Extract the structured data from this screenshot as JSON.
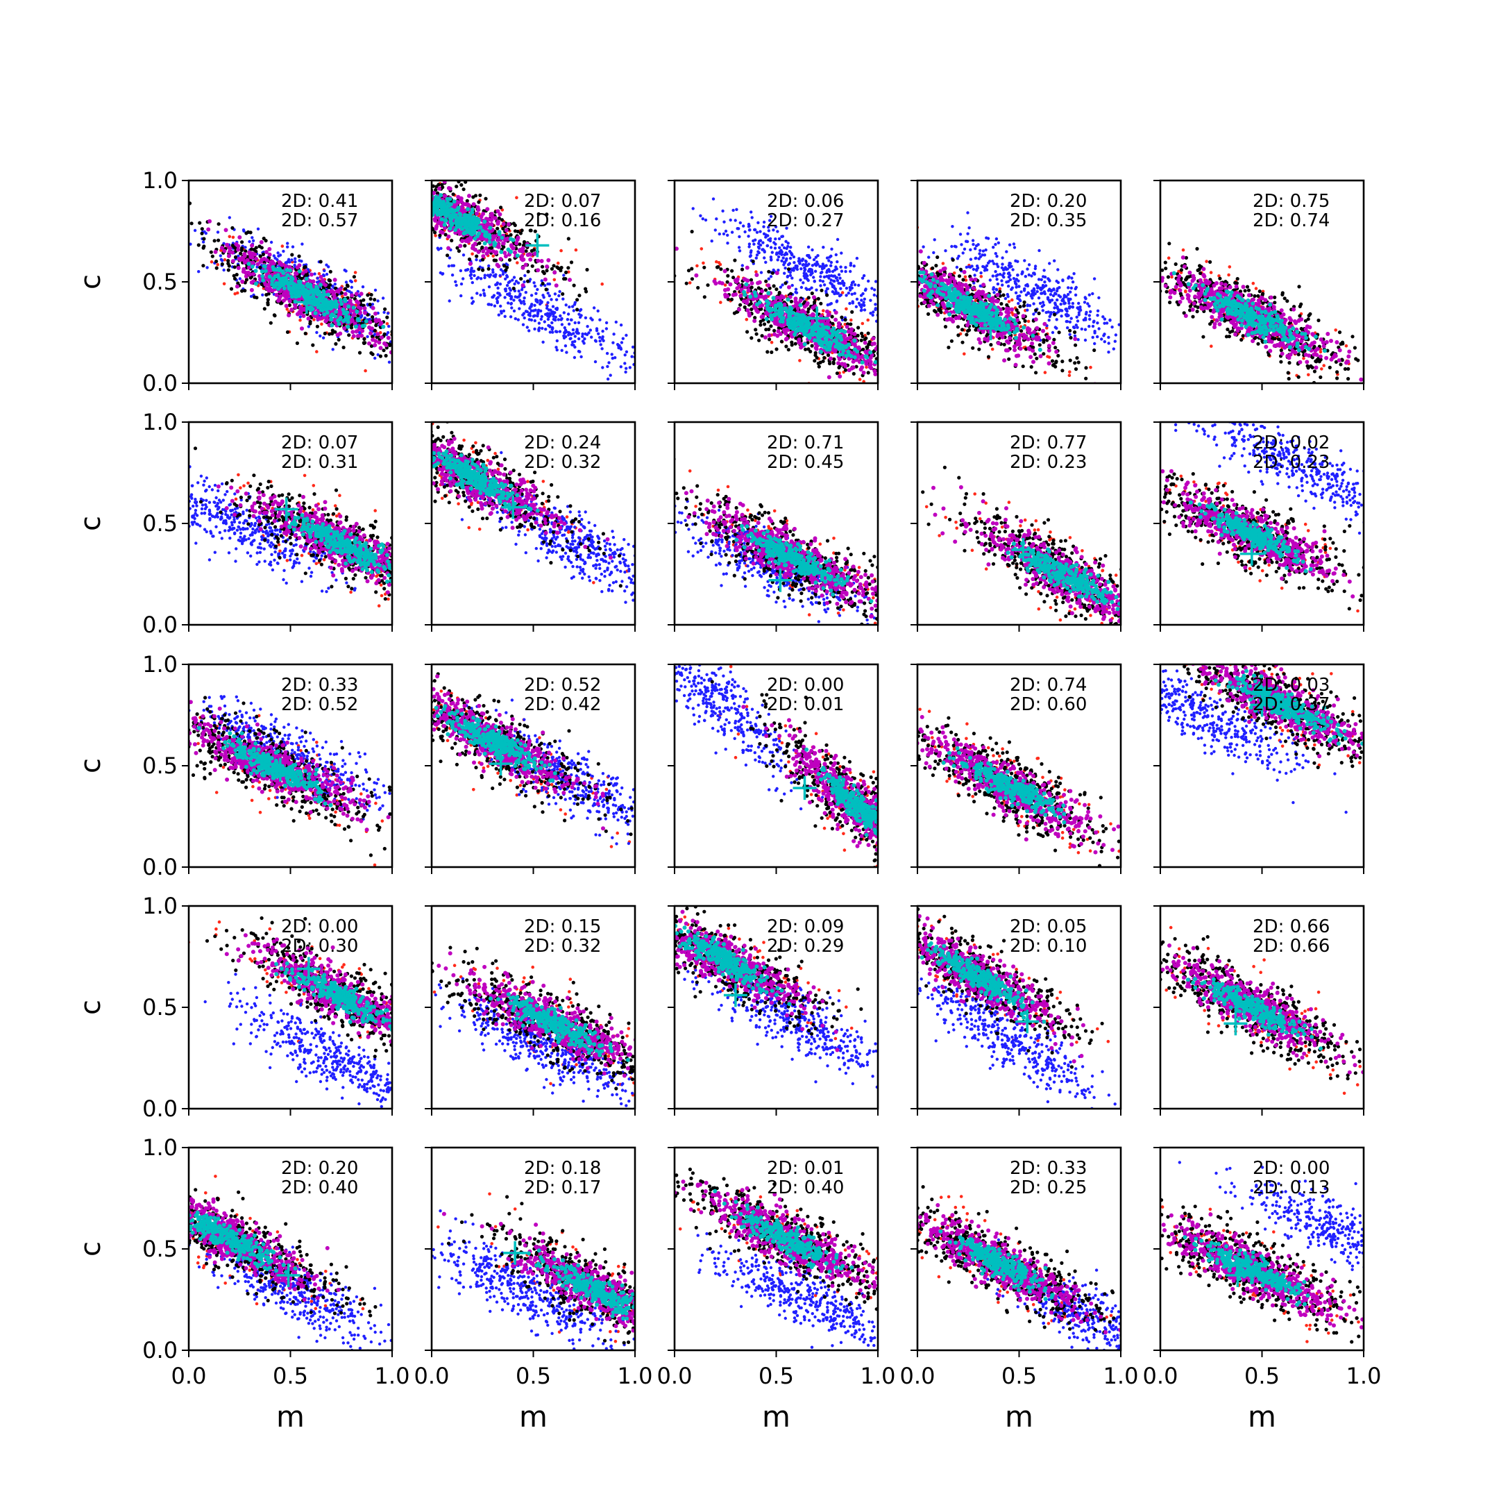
{
  "figure": {
    "xlabel": "m",
    "ylabel": "c",
    "xticks": [
      "0.0",
      "0.5",
      "1.0"
    ],
    "yticks": [
      "0.0",
      "0.5",
      "1.0"
    ]
  },
  "chart_data": {
    "type": "scatter",
    "grid": false,
    "layout": "5x5 panel grid, shared axes",
    "xlabel": "m",
    "ylabel": "c",
    "xlim": [
      0,
      1
    ],
    "ylim": [
      0,
      1
    ],
    "colors": {
      "outer": "#ff2a1a",
      "blue_samples": "#2020ff",
      "black_samples": "#000000",
      "magenta_core": "#bf00bf",
      "cyan_core": "#00bfbf",
      "marker": "#00bfbf"
    },
    "panels": [
      {
        "row": 0,
        "col": 0,
        "annotation": [
          "2D: 0.41",
          "2D: 0.57"
        ],
        "main_center": [
          0.58,
          0.44
        ],
        "slope": -0.55,
        "blue_center": [
          0.6,
          0.46
        ],
        "marker": [
          0.58,
          0.4
        ]
      },
      {
        "row": 0,
        "col": 1,
        "annotation": [
          "2D: 0.07",
          "2D: 0.16"
        ],
        "main_center": [
          0.12,
          0.82
        ],
        "slope": -0.55,
        "blue_center": [
          0.55,
          0.35
        ],
        "marker": [
          0.52,
          0.68
        ]
      },
      {
        "row": 0,
        "col": 2,
        "annotation": [
          "2D: 0.06",
          "2D: 0.27"
        ],
        "main_center": [
          0.65,
          0.28
        ],
        "slope": -0.55,
        "blue_center": [
          0.65,
          0.57
        ],
        "marker": [
          0.7,
          0.32
        ]
      },
      {
        "row": 0,
        "col": 3,
        "annotation": [
          "2D: 0.20",
          "2D: 0.35"
        ],
        "main_center": [
          0.25,
          0.38
        ],
        "slope": -0.55,
        "blue_center": [
          0.6,
          0.45
        ],
        "marker": [
          0.36,
          0.27
        ]
      },
      {
        "row": 0,
        "col": 4,
        "annotation": [
          "2D: 0.75",
          "2D: 0.74"
        ],
        "main_center": [
          0.45,
          0.33
        ],
        "slope": -0.5,
        "blue_center": null,
        "marker": null
      },
      {
        "row": 1,
        "col": 0,
        "annotation": [
          "2D: 0.07",
          "2D: 0.31"
        ],
        "main_center": [
          0.75,
          0.4
        ],
        "slope": -0.5,
        "blue_center": [
          0.25,
          0.5
        ],
        "marker": [
          0.48,
          0.57
        ]
      },
      {
        "row": 1,
        "col": 1,
        "annotation": [
          "2D: 0.24",
          "2D: 0.32"
        ],
        "main_center": [
          0.2,
          0.73
        ],
        "slope": -0.55,
        "blue_center": [
          0.7,
          0.4
        ],
        "marker": [
          0.4,
          0.58
        ]
      },
      {
        "row": 1,
        "col": 2,
        "annotation": [
          "2D: 0.71",
          "2D: 0.45"
        ],
        "main_center": [
          0.58,
          0.33
        ],
        "slope": -0.5,
        "blue_center": [
          0.45,
          0.3
        ],
        "marker": [
          0.52,
          0.22
        ]
      },
      {
        "row": 1,
        "col": 3,
        "annotation": [
          "2D: 0.77",
          "2D: 0.23"
        ],
        "main_center": [
          0.72,
          0.25
        ],
        "slope": -0.55,
        "blue_center": null,
        "marker": [
          0.52,
          0.37
        ]
      },
      {
        "row": 1,
        "col": 4,
        "annotation": [
          "2D: 0.02",
          "2D: 0.23"
        ],
        "main_center": [
          0.45,
          0.45
        ],
        "slope": -0.5,
        "blue_center": [
          0.7,
          0.77
        ],
        "marker": [
          0.45,
          0.35
        ]
      },
      {
        "row": 2,
        "col": 0,
        "annotation": [
          "2D: 0.33",
          "2D: 0.52"
        ],
        "main_center": [
          0.4,
          0.5
        ],
        "slope": -0.5,
        "blue_center": [
          0.5,
          0.55
        ],
        "marker": [
          0.45,
          0.48
        ]
      },
      {
        "row": 2,
        "col": 1,
        "annotation": [
          "2D: 0.52",
          "2D: 0.42"
        ],
        "main_center": [
          0.3,
          0.62
        ],
        "slope": -0.55,
        "blue_center": [
          0.65,
          0.45
        ],
        "marker": [
          0.34,
          0.51
        ]
      },
      {
        "row": 2,
        "col": 2,
        "annotation": [
          "2D: 0.00",
          "2D: 0.01"
        ],
        "main_center": [
          0.9,
          0.3
        ],
        "slope": -0.9,
        "blue_center": [
          0.2,
          0.82
        ],
        "marker": [
          0.64,
          0.39
        ]
      },
      {
        "row": 2,
        "col": 3,
        "annotation": [
          "2D: 0.74",
          "2D: 0.60"
        ],
        "main_center": [
          0.45,
          0.4
        ],
        "slope": -0.55,
        "blue_center": null,
        "marker": null
      },
      {
        "row": 2,
        "col": 4,
        "annotation": [
          "2D: 0.03",
          "2D: 0.37"
        ],
        "main_center": [
          0.6,
          0.8
        ],
        "slope": -0.5,
        "blue_center": [
          0.2,
          0.75
        ],
        "marker": [
          0.5,
          0.8
        ]
      },
      {
        "row": 3,
        "col": 0,
        "annotation": [
          "2D: 0.00",
          "2D: 0.30"
        ],
        "main_center": [
          0.75,
          0.55
        ],
        "slope": -0.55,
        "blue_center": [
          0.7,
          0.25
        ],
        "marker": [
          0.59,
          0.69
        ]
      },
      {
        "row": 3,
        "col": 1,
        "annotation": [
          "2D: 0.15",
          "2D: 0.32"
        ],
        "main_center": [
          0.6,
          0.42
        ],
        "slope": -0.5,
        "blue_center": [
          0.55,
          0.3
        ],
        "marker": null
      },
      {
        "row": 3,
        "col": 2,
        "annotation": [
          "2D: 0.09",
          "2D: 0.29"
        ],
        "main_center": [
          0.25,
          0.73
        ],
        "slope": -0.55,
        "blue_center": [
          0.6,
          0.43
        ],
        "marker": [
          0.3,
          0.56
        ]
      },
      {
        "row": 3,
        "col": 3,
        "annotation": [
          "2D: 0.05",
          "2D: 0.10"
        ],
        "main_center": [
          0.3,
          0.65
        ],
        "slope": -0.6,
        "blue_center": [
          0.45,
          0.35
        ],
        "marker": [
          0.54,
          0.43
        ]
      },
      {
        "row": 3,
        "col": 4,
        "annotation": [
          "2D: 0.66",
          "2D: 0.66"
        ],
        "main_center": [
          0.45,
          0.5
        ],
        "slope": -0.55,
        "blue_center": null,
        "marker": [
          0.37,
          0.42
        ]
      },
      {
        "row": 4,
        "col": 0,
        "annotation": [
          "2D: 0.20",
          "2D: 0.40"
        ],
        "main_center": [
          0.2,
          0.55
        ],
        "slope": -0.55,
        "blue_center": [
          0.5,
          0.3
        ],
        "marker": [
          0.49,
          0.37
        ]
      },
      {
        "row": 4,
        "col": 1,
        "annotation": [
          "2D: 0.18",
          "2D: 0.17"
        ],
        "main_center": [
          0.8,
          0.3
        ],
        "slope": -0.55,
        "blue_center": [
          0.45,
          0.3
        ],
        "marker": [
          0.41,
          0.48
        ]
      },
      {
        "row": 4,
        "col": 2,
        "annotation": [
          "2D: 0.01",
          "2D: 0.40"
        ],
        "main_center": [
          0.55,
          0.55
        ],
        "slope": -0.5,
        "blue_center": [
          0.65,
          0.25
        ],
        "marker": null
      },
      {
        "row": 4,
        "col": 3,
        "annotation": [
          "2D: 0.33",
          "2D: 0.25"
        ],
        "main_center": [
          0.4,
          0.43
        ],
        "slope": -0.55,
        "blue_center": [
          0.85,
          0.15
        ],
        "marker": null
      },
      {
        "row": 4,
        "col": 4,
        "annotation": [
          "2D: 0.00",
          "2D: 0.13"
        ],
        "main_center": [
          0.45,
          0.4
        ],
        "slope": -0.5,
        "blue_center": [
          0.9,
          0.58
        ],
        "marker": [
          0.38,
          0.37
        ]
      }
    ]
  }
}
